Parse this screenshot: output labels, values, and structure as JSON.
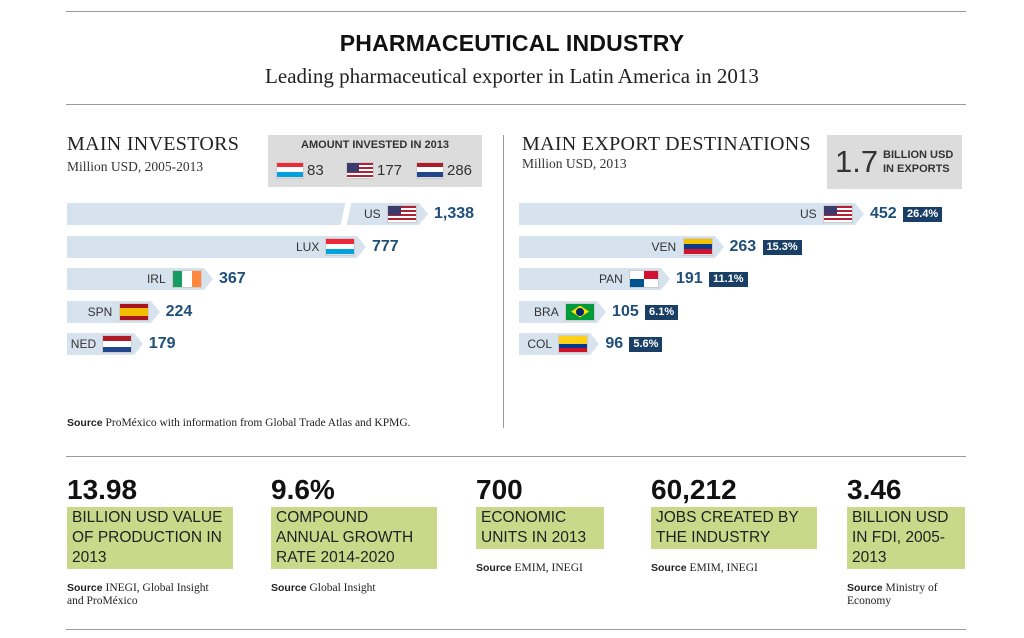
{
  "header": {
    "title": "PHARMACEUTICAL INDUSTRY",
    "subtitle": "Leading pharmaceutical exporter in Latin America in 2013"
  },
  "investors": {
    "title": "MAIN INVESTORS",
    "subtitle": "Million USD, 2005-2013",
    "amount_box": {
      "title": "AMOUNT INVESTED IN 2013",
      "items": [
        {
          "flag": "luxembourg-flag",
          "value": "83"
        },
        {
          "flag": "us-flag",
          "value": "177"
        },
        {
          "flag": "netherlands-flag",
          "value": "286"
        }
      ]
    }
  },
  "exports": {
    "title": "MAIN EXPORT DESTINATIONS",
    "subtitle": "Million USD, 2013",
    "total_value": "1.7",
    "total_label": "BILLION USD IN EXPORTS"
  },
  "chart_data": [
    {
      "type": "bar",
      "orientation": "horizontal",
      "title": "MAIN INVESTORS",
      "subtitle": "Million USD, 2005-2013",
      "categories": [
        "US",
        "LUX",
        "IRL",
        "SPN",
        "NED"
      ],
      "values": [
        1338,
        777,
        367,
        224,
        179
      ],
      "value_labels": [
        "1,338",
        "777",
        "367",
        "224",
        "179"
      ],
      "flags": [
        "us-flag",
        "luxembourg-flag",
        "ireland-flag",
        "spain-flag",
        "netherlands-flag"
      ],
      "axis_break_on_first_bar": true,
      "grid": false
    },
    {
      "type": "bar",
      "orientation": "horizontal",
      "title": "MAIN EXPORT DESTINATIONS",
      "subtitle": "Million USD, 2013",
      "categories": [
        "US",
        "VEN",
        "PAN",
        "BRA",
        "COL"
      ],
      "values": [
        452,
        263,
        191,
        105,
        96
      ],
      "value_labels": [
        "452",
        "263",
        "191",
        "105",
        "96"
      ],
      "percent_labels": [
        "26.4%",
        "15.3%",
        "11.1%",
        "6.1%",
        "5.6%"
      ],
      "flags": [
        "us-flag",
        "venezuela-flag",
        "panama-flag",
        "brazil-flag",
        "colombia-flag"
      ],
      "grid": false
    }
  ],
  "source_main": {
    "label": "Source",
    "text": "ProMéxico with information from Global Trade Atlas and KPMG."
  },
  "stats": [
    {
      "value": "13.98",
      "label": "BILLION USD VALUE OF PRODUCTION IN 2013",
      "source_label": "Source",
      "source": "INEGI, Global Insight and ProMéxico"
    },
    {
      "value": "9.6%",
      "label": "COMPOUND ANNUAL GROWTH RATE 2014-2020",
      "source_label": "Source",
      "source": "Global Insight"
    },
    {
      "value": "700",
      "label": "ECONOMIC UNITS IN 2013",
      "source_label": "Source",
      "source": "EMIM, INEGI"
    },
    {
      "value": "60,212",
      "label": "JOBS CREATED BY THE INDUSTRY",
      "source_label": "Source",
      "source": "EMIM, INEGI"
    },
    {
      "value": "3.46",
      "label": "BILLION USD IN FDI, 2005-2013",
      "source_label": "Source",
      "source": "Ministry of Economy"
    }
  ],
  "colors": {
    "bar": "#d6e3ef",
    "value_text": "#1f4e79",
    "percent_badge": "#1a3f66",
    "stat_highlight": "#c8d98a",
    "box_gray": "#dcdcdc"
  }
}
